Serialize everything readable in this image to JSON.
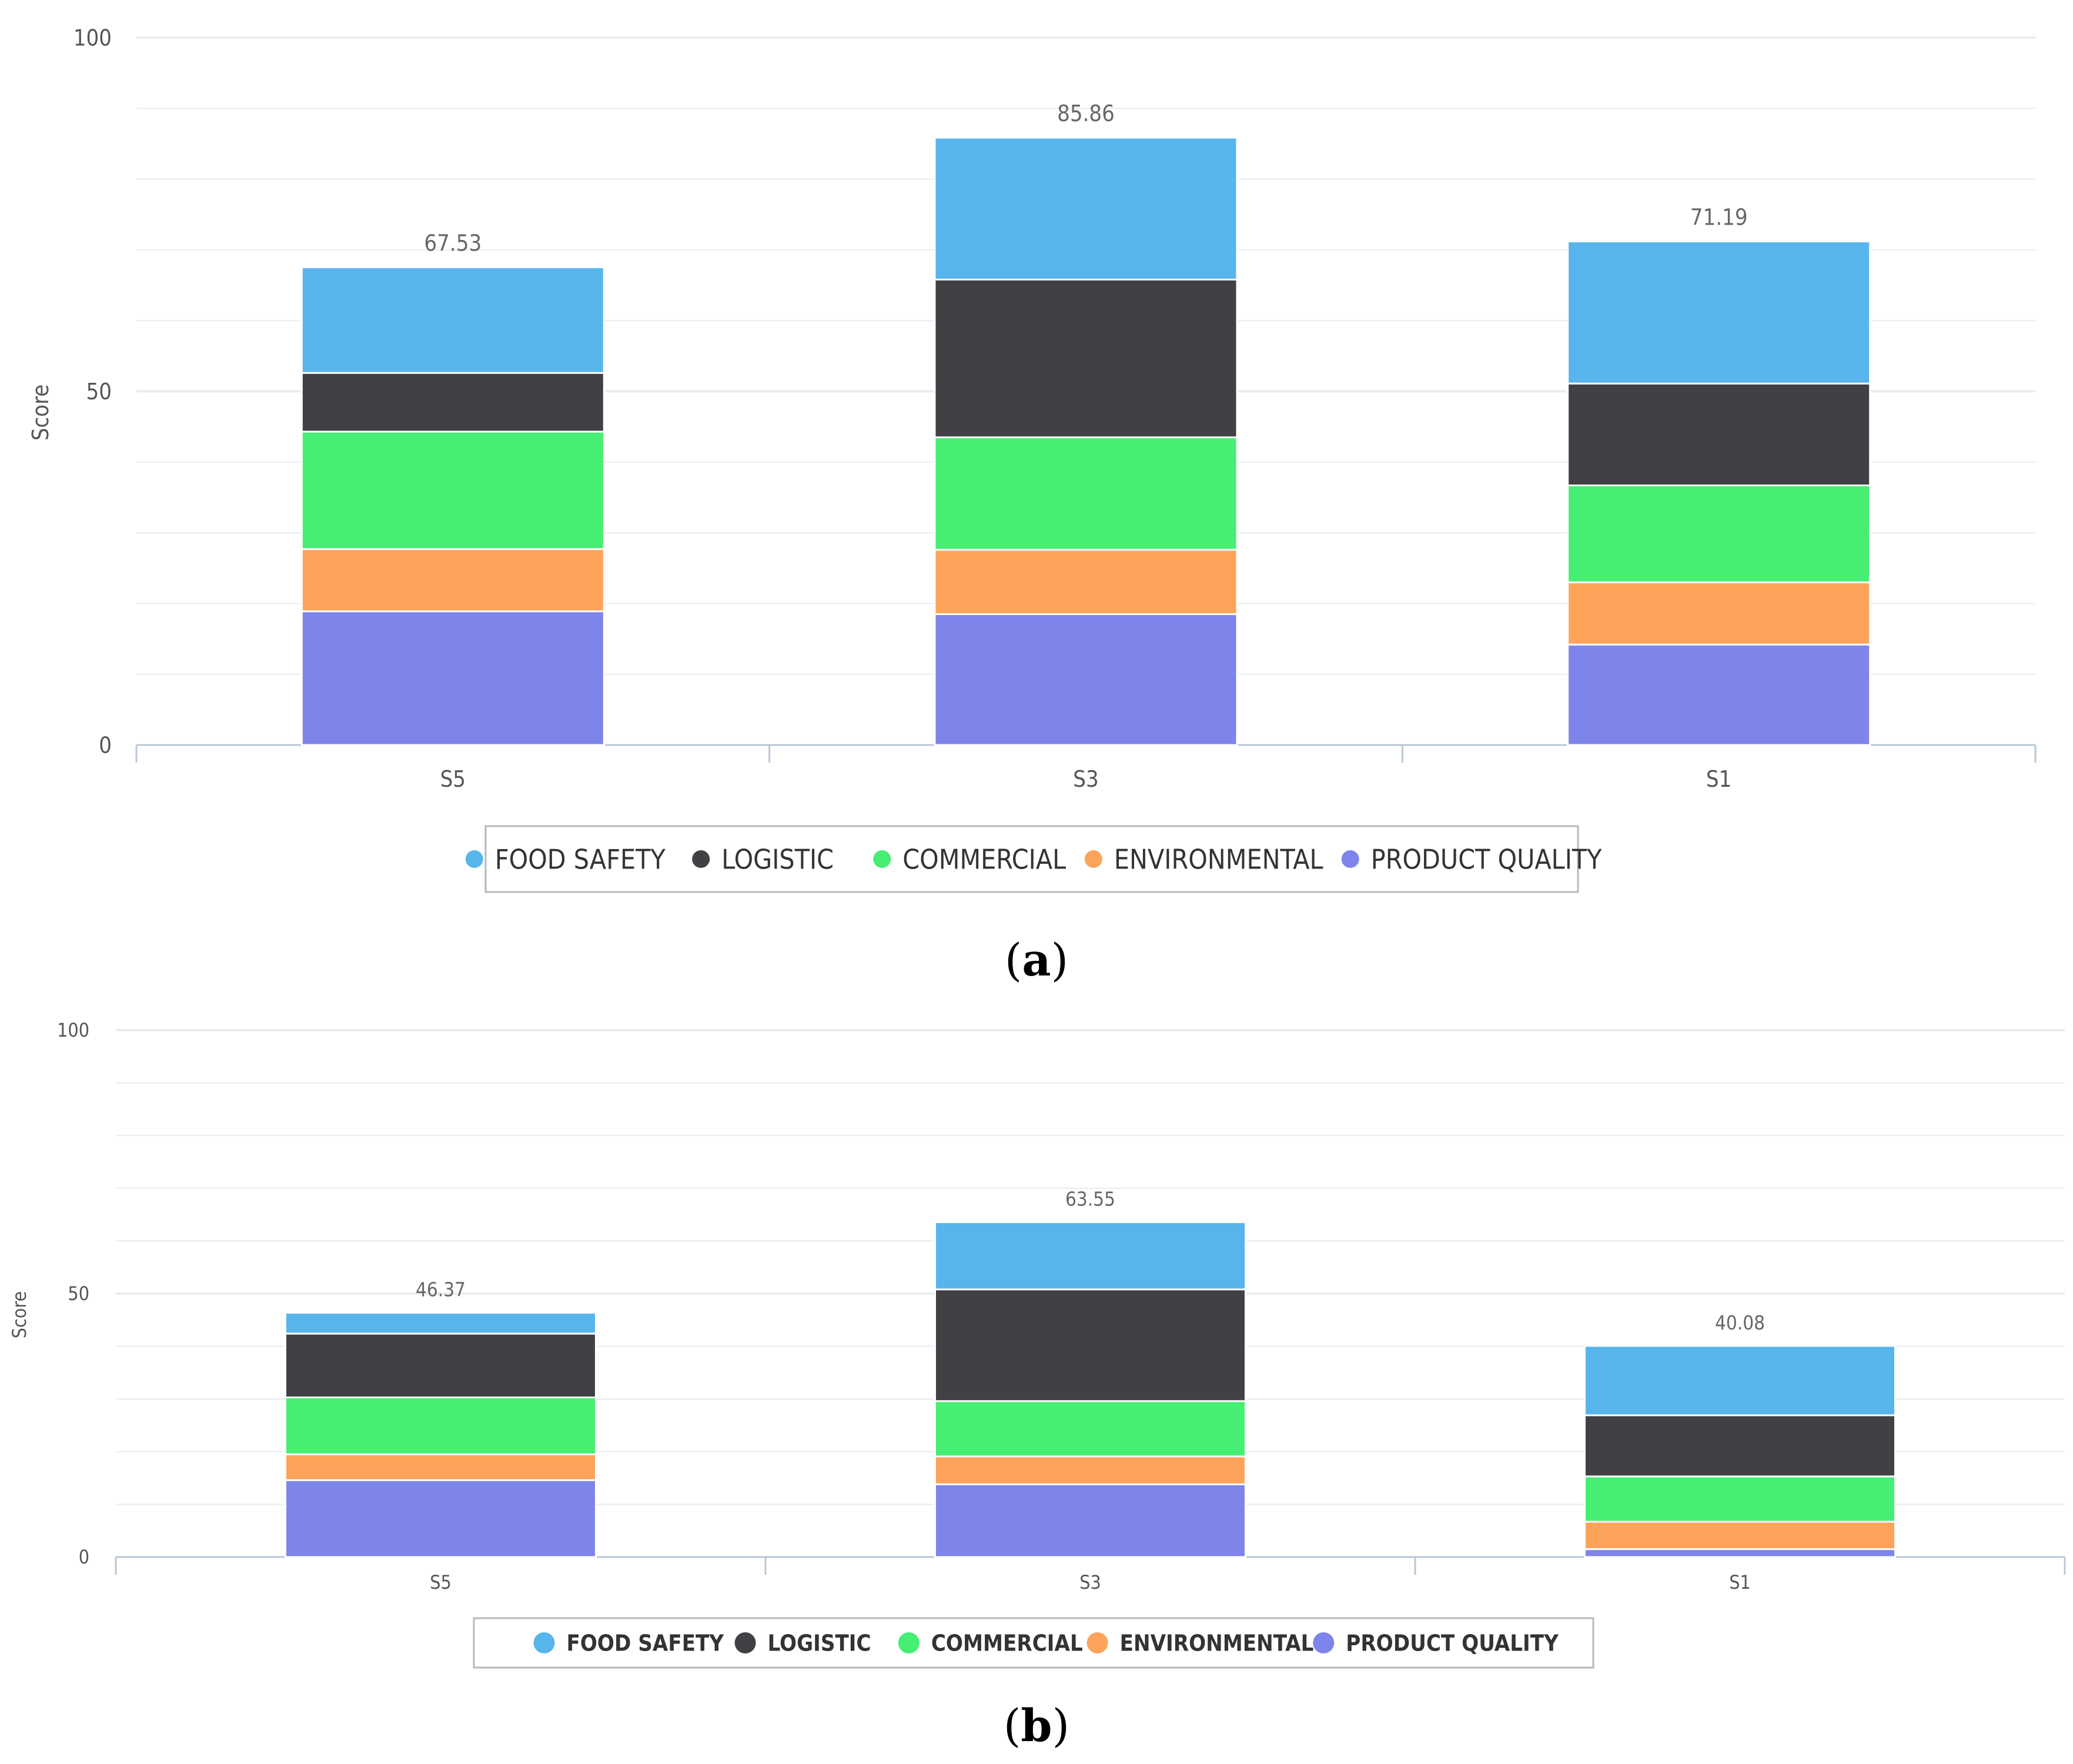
{
  "colors": {
    "food_safety": "#58b5ec",
    "logistic": "#404045",
    "commercial": "#46ee73",
    "environmental": "#fda45a",
    "product_quality": "#7f84ea",
    "grid": "#e8ecf1",
    "axis": "#b9c7d6",
    "tick_text": "#555555",
    "label_text": "#666666"
  },
  "chart_data": [
    {
      "type": "bar",
      "stacked": true,
      "caption_letter": "a",
      "ylabel": "Score",
      "ylim": [
        0,
        100
      ],
      "yticks": [
        0,
        50,
        100
      ],
      "minor_grid_step": 10,
      "categories": [
        "S5",
        "S3",
        "S1"
      ],
      "totals": [
        "67.53",
        "85.86",
        "71.19"
      ],
      "series": [
        {
          "key": "product_quality",
          "name": "PRODUCT QUALITY",
          "values": [
            18.9,
            18.5,
            14.2
          ]
        },
        {
          "key": "environmental",
          "name": "ENVIRONMENTAL",
          "values": [
            8.8,
            9.1,
            8.8
          ]
        },
        {
          "key": "commercial",
          "name": "COMMERCIAL",
          "values": [
            16.6,
            15.9,
            13.7
          ]
        },
        {
          "key": "logistic",
          "name": "LOGISTIC",
          "values": [
            8.3,
            22.3,
            14.4
          ]
        },
        {
          "key": "food_safety",
          "name": "FOOD SAFETY",
          "values": [
            14.93,
            20.06,
            20.09
          ]
        }
      ],
      "legend": [
        "FOOD SAFETY",
        "LOGISTIC",
        "COMMERCIAL",
        "ENVIRONMENTAL",
        "PRODUCT QUALITY"
      ],
      "legend_keys": [
        "food_safety",
        "logistic",
        "commercial",
        "environmental",
        "product_quality"
      ]
    },
    {
      "type": "bar",
      "stacked": true,
      "caption_letter": "b",
      "ylabel": "Score",
      "ylim": [
        0,
        100
      ],
      "yticks": [
        0,
        50,
        100
      ],
      "minor_grid_step": 10,
      "categories": [
        "S5",
        "S3",
        "S1"
      ],
      "totals": [
        "46.37",
        "63.55",
        "40.08"
      ],
      "series": [
        {
          "key": "product_quality",
          "name": "PRODUCT QUALITY",
          "values": [
            14.6,
            13.8,
            1.5
          ]
        },
        {
          "key": "environmental",
          "name": "ENVIRONMENTAL",
          "values": [
            4.9,
            5.3,
            5.2
          ]
        },
        {
          "key": "commercial",
          "name": "COMMERCIAL",
          "values": [
            10.8,
            10.5,
            8.6
          ]
        },
        {
          "key": "logistic",
          "name": "LOGISTIC",
          "values": [
            12.1,
            21.2,
            11.6
          ]
        },
        {
          "key": "food_safety",
          "name": "FOOD SAFETY",
          "values": [
            3.97,
            12.75,
            13.18
          ]
        }
      ],
      "legend": [
        "FOOD SAFETY",
        "LOGISTIC",
        "COMMERCIAL",
        "ENVIRONMENTAL",
        "PRODUCT QUALITY"
      ],
      "legend_keys": [
        "food_safety",
        "logistic",
        "commercial",
        "environmental",
        "product_quality"
      ]
    }
  ]
}
